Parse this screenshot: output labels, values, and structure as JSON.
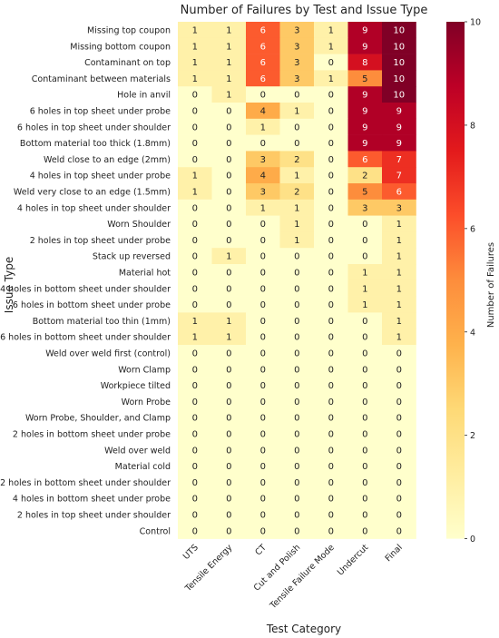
{
  "chart_data": {
    "type": "heatmap",
    "title": "Number of Failures by Test and Issue Type",
    "xlabel": "Test Category",
    "ylabel": "Issue Type",
    "colorbar_label": "Number of Failures",
    "colorbar_ticks": [
      "0",
      "2",
      "4",
      "6",
      "8",
      "10"
    ],
    "vmin": 0,
    "vmax": 10,
    "colormap": [
      "#ffffcc",
      "#ffeda0",
      "#fed976",
      "#feb24c",
      "#fd8d3c",
      "#fc4e2a",
      "#e31a1c",
      "#bd0026",
      "#800026"
    ],
    "columns": [
      "UTS",
      "Tensile Energy",
      "CT",
      "Cut and Polish",
      "Tensile Failure Mode",
      "Undercut",
      "Final"
    ],
    "rows": [
      "Missing top coupon",
      "Missing bottom coupon",
      "Contaminant on top",
      "Contaminant between materials",
      "Hole in anvil",
      "6 holes in top sheet under probe",
      "6 holes in top sheet under shoulder",
      "Bottom material too thick (1.8mm)",
      "Weld close to an edge (2mm)",
      "4 holes in top sheet under probe",
      "Weld very close to an edge (1.5mm)",
      "4 holes in top sheet under shoulder",
      "Worn Shoulder",
      "2 holes in top sheet under probe",
      "Stack up reversed",
      "Material hot",
      "4 holes in bottom sheet under shoulder",
      "6 holes in bottom sheet under probe",
      "Bottom material too thin (1mm)",
      "6 holes in bottom sheet under shoulder",
      "Weld over weld first (control)",
      "Worn Clamp",
      "Workpiece tilted",
      "Worn Probe",
      "Worn Probe, Shoulder, and Clamp",
      "2 holes in bottom sheet under probe",
      "Weld over weld",
      "Material cold",
      "2 holes in bottom sheet under shoulder",
      "4 holes in bottom sheet under probe",
      "2 holes in top sheet under shoulder",
      "Control"
    ],
    "values": [
      [
        1,
        1,
        6,
        3,
        1,
        9,
        10
      ],
      [
        1,
        1,
        6,
        3,
        1,
        9,
        10
      ],
      [
        1,
        1,
        6,
        3,
        0,
        8,
        10
      ],
      [
        1,
        1,
        6,
        3,
        1,
        5,
        10
      ],
      [
        0,
        1,
        0,
        0,
        0,
        9,
        10
      ],
      [
        0,
        0,
        4,
        1,
        0,
        9,
        9
      ],
      [
        0,
        0,
        1,
        0,
        0,
        9,
        9
      ],
      [
        0,
        0,
        0,
        0,
        0,
        9,
        9
      ],
      [
        0,
        0,
        3,
        2,
        0,
        6,
        7
      ],
      [
        1,
        0,
        4,
        1,
        0,
        2,
        7
      ],
      [
        1,
        0,
        3,
        2,
        0,
        5,
        6
      ],
      [
        0,
        0,
        1,
        1,
        0,
        3,
        3
      ],
      [
        0,
        0,
        0,
        1,
        0,
        0,
        1
      ],
      [
        0,
        0,
        0,
        1,
        0,
        0,
        1
      ],
      [
        0,
        1,
        0,
        0,
        0,
        0,
        1
      ],
      [
        0,
        0,
        0,
        0,
        0,
        1,
        1
      ],
      [
        0,
        0,
        0,
        0,
        0,
        1,
        1
      ],
      [
        0,
        0,
        0,
        0,
        0,
        1,
        1
      ],
      [
        1,
        1,
        0,
        0,
        0,
        0,
        1
      ],
      [
        1,
        1,
        0,
        0,
        0,
        0,
        1
      ],
      [
        0,
        0,
        0,
        0,
        0,
        0,
        0
      ],
      [
        0,
        0,
        0,
        0,
        0,
        0,
        0
      ],
      [
        0,
        0,
        0,
        0,
        0,
        0,
        0
      ],
      [
        0,
        0,
        0,
        0,
        0,
        0,
        0
      ],
      [
        0,
        0,
        0,
        0,
        0,
        0,
        0
      ],
      [
        0,
        0,
        0,
        0,
        0,
        0,
        0
      ],
      [
        0,
        0,
        0,
        0,
        0,
        0,
        0
      ],
      [
        0,
        0,
        0,
        0,
        0,
        0,
        0
      ],
      [
        0,
        0,
        0,
        0,
        0,
        0,
        0
      ],
      [
        0,
        0,
        0,
        0,
        0,
        0,
        0
      ],
      [
        0,
        0,
        0,
        0,
        0,
        0,
        0
      ],
      [
        0,
        0,
        0,
        0,
        0,
        0,
        0
      ]
    ]
  }
}
